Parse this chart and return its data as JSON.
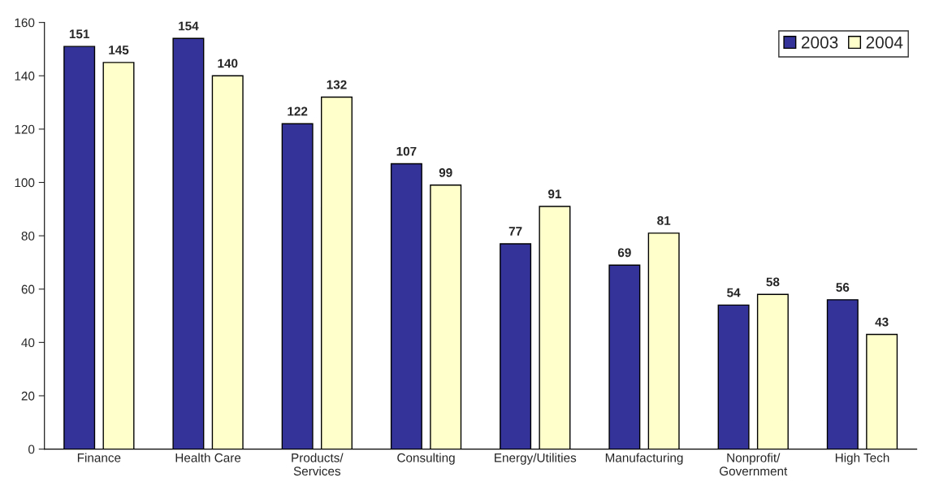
{
  "chart_data": {
    "type": "bar",
    "categories": [
      "Finance",
      "Health Care",
      "Products/\nServices",
      "Consulting",
      "Energy/Utilities",
      "Manufacturing",
      "Nonprofit/\nGovernment",
      "High Tech"
    ],
    "series": [
      {
        "name": "2003",
        "color": "#333399",
        "values": [
          151,
          154,
          122,
          107,
          77,
          69,
          54,
          56
        ]
      },
      {
        "name": "2004",
        "color": "#ffffcc",
        "values": [
          145,
          140,
          132,
          99,
          91,
          81,
          58,
          43
        ]
      }
    ],
    "ylim": [
      0,
      160
    ],
    "yticks": [
      0,
      20,
      40,
      60,
      80,
      100,
      120,
      140,
      160
    ],
    "data_labels": true,
    "legend": "top right",
    "grid": false
  }
}
